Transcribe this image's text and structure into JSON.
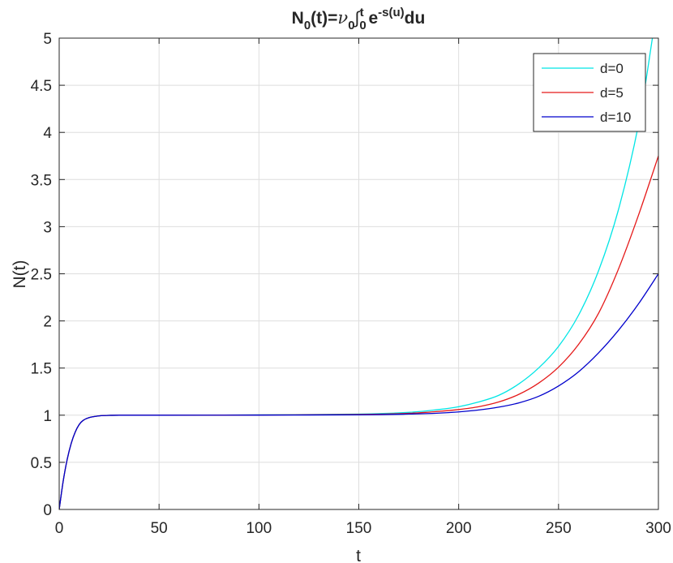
{
  "chart_data": {
    "type": "line",
    "title": {
      "base": "N",
      "sub1": "0",
      "mid": "(t)=",
      "nu": "ν",
      "sub2": "0",
      "integral": "∫",
      "int_lower": "0",
      "int_upper": "t",
      "exp_base": " e",
      "exponent": "-s(u)",
      "tail": "du"
    },
    "xlabel": "t",
    "ylabel": "N(t)",
    "xlim": [
      0,
      300
    ],
    "ylim": [
      0,
      5
    ],
    "xticks": [
      0,
      50,
      100,
      150,
      200,
      250,
      300
    ],
    "yticks": [
      0,
      0.5,
      1,
      1.5,
      2,
      2.5,
      3,
      3.5,
      4,
      4.5,
      5
    ],
    "xtick_labels": [
      "0",
      "50",
      "100",
      "150",
      "200",
      "250",
      "300"
    ],
    "ytick_labels": [
      "0",
      "0.5",
      "1",
      "1.5",
      "2",
      "2.5",
      "3",
      "3.5",
      "4",
      "4.5",
      "5"
    ],
    "grid": true,
    "legend_position": "top-right",
    "series": [
      {
        "name": "d=0",
        "color": "#00e5e5",
        "points": [
          [
            0,
            0
          ],
          [
            2,
            0.3
          ],
          [
            4,
            0.53
          ],
          [
            6,
            0.7
          ],
          [
            8,
            0.82
          ],
          [
            10,
            0.9
          ],
          [
            12,
            0.945
          ],
          [
            15,
            0.975
          ],
          [
            20,
            0.993
          ],
          [
            25,
            0.998
          ],
          [
            30,
            1.0
          ],
          [
            50,
            1.0
          ],
          [
            100,
            1.003
          ],
          [
            150,
            1.012
          ],
          [
            175,
            1.03
          ],
          [
            190,
            1.06
          ],
          [
            200,
            1.09
          ],
          [
            210,
            1.14
          ],
          [
            220,
            1.21
          ],
          [
            230,
            1.33
          ],
          [
            240,
            1.5
          ],
          [
            250,
            1.73
          ],
          [
            260,
            2.06
          ],
          [
            270,
            2.53
          ],
          [
            280,
            3.18
          ],
          [
            290,
            4.08
          ],
          [
            297,
            5.0
          ]
        ]
      },
      {
        "name": "d=5",
        "color": "#e51919",
        "points": [
          [
            0,
            0
          ],
          [
            2,
            0.3
          ],
          [
            4,
            0.53
          ],
          [
            6,
            0.7
          ],
          [
            8,
            0.82
          ],
          [
            10,
            0.9
          ],
          [
            12,
            0.945
          ],
          [
            15,
            0.975
          ],
          [
            20,
            0.993
          ],
          [
            25,
            0.998
          ],
          [
            30,
            1.0
          ],
          [
            50,
            1.0
          ],
          [
            100,
            1.002
          ],
          [
            150,
            1.008
          ],
          [
            175,
            1.02
          ],
          [
            190,
            1.04
          ],
          [
            200,
            1.06
          ],
          [
            210,
            1.09
          ],
          [
            220,
            1.14
          ],
          [
            230,
            1.22
          ],
          [
            240,
            1.34
          ],
          [
            250,
            1.51
          ],
          [
            260,
            1.75
          ],
          [
            270,
            2.08
          ],
          [
            280,
            2.55
          ],
          [
            290,
            3.12
          ],
          [
            300,
            3.75
          ]
        ]
      },
      {
        "name": "d=10",
        "color": "#0000cc",
        "points": [
          [
            0,
            0
          ],
          [
            2,
            0.3
          ],
          [
            4,
            0.53
          ],
          [
            6,
            0.7
          ],
          [
            8,
            0.82
          ],
          [
            10,
            0.9
          ],
          [
            12,
            0.945
          ],
          [
            15,
            0.975
          ],
          [
            20,
            0.993
          ],
          [
            25,
            0.998
          ],
          [
            30,
            1.0
          ],
          [
            50,
            1.0
          ],
          [
            100,
            1.001
          ],
          [
            150,
            1.004
          ],
          [
            175,
            1.012
          ],
          [
            190,
            1.022
          ],
          [
            200,
            1.035
          ],
          [
            210,
            1.055
          ],
          [
            220,
            1.085
          ],
          [
            230,
            1.13
          ],
          [
            240,
            1.2
          ],
          [
            250,
            1.31
          ],
          [
            260,
            1.46
          ],
          [
            270,
            1.66
          ],
          [
            280,
            1.9
          ],
          [
            290,
            2.18
          ],
          [
            300,
            2.5
          ]
        ]
      }
    ]
  }
}
